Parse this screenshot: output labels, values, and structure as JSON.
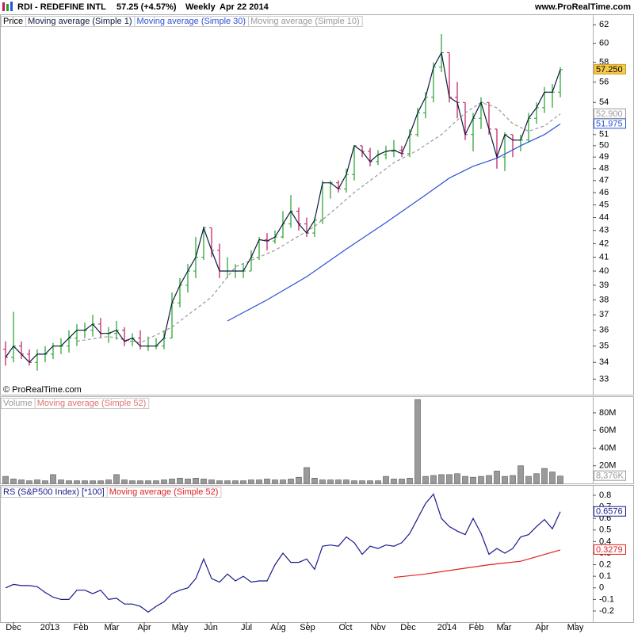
{
  "header": {
    "symbol": "RDI - REDEFINE INTL",
    "quote": "57.25 (+4.57%)",
    "period": "Weekly",
    "date": "Apr 22 2014",
    "site": "www.ProRealTime.com"
  },
  "chart_data": [
    {
      "type": "ohlc",
      "legend_label": "Price",
      "close_name": "Moving average (Simple 1)",
      "close_color": "#0b1a3e",
      "up_color": "#22a02a",
      "down_color": "#c2185b",
      "log_scale": true,
      "annotation": "© ProRealTime.com",
      "last_label": "57.250",
      "xlim": [
        -0.7,
        74.1
      ],
      "ylim": [
        32.1,
        63.0
      ],
      "yticks": [
        33,
        34,
        35,
        36,
        37,
        38,
        39,
        40,
        41,
        42,
        43,
        44,
        45,
        46,
        47,
        48,
        49,
        50,
        51,
        52,
        54,
        56,
        58,
        60,
        62
      ],
      "x": [
        0,
        1,
        2,
        3,
        4,
        5,
        6,
        7,
        8,
        9,
        10,
        11,
        12,
        13,
        14,
        15,
        16,
        17,
        18,
        19,
        20,
        21,
        22,
        23,
        24,
        25,
        26,
        27,
        28,
        29,
        30,
        31,
        32,
        33,
        34,
        35,
        36,
        37,
        38,
        39,
        40,
        41,
        42,
        43,
        44,
        45,
        46,
        47,
        48,
        49,
        50,
        51,
        52,
        53,
        54,
        55,
        56,
        57,
        58,
        59,
        60,
        61,
        62,
        63,
        64,
        65,
        66,
        67,
        68,
        69,
        70
      ],
      "open": [
        34.8,
        34.3,
        35.0,
        34.5,
        34.0,
        34.5,
        34.5,
        35.0,
        35.0,
        35.5,
        36.0,
        36.0,
        36.4,
        35.8,
        35.8,
        36.0,
        35.3,
        35.5,
        35.0,
        35.0,
        35.0,
        35.5,
        37.8,
        39.0,
        40.0,
        41.0,
        43.2,
        41.5,
        40.0,
        40.0,
        40.0,
        40.0,
        41.0,
        42.3,
        42.2,
        42.5,
        43.5,
        44.5,
        43.5,
        42.8,
        43.8,
        46.8,
        46.8,
        46.3,
        47.5,
        50.0,
        49.5,
        48.6,
        49.2,
        49.5,
        49.6,
        49.3,
        51.0,
        53.0,
        54.5,
        57.5,
        59.0,
        54.5,
        54.0,
        51.0,
        52.5,
        54.0,
        51.5,
        49.0,
        51.0,
        50.5,
        50.5,
        52.5,
        53.5,
        55.0,
        55.0
      ],
      "high": [
        35.3,
        37.2,
        35.3,
        34.8,
        34.8,
        35.0,
        35.2,
        35.5,
        36.0,
        36.4,
        36.5,
        37.0,
        36.8,
        36.2,
        36.6,
        36.2,
        35.8,
        36.0,
        35.6,
        35.5,
        36.0,
        38.5,
        39.5,
        40.5,
        42.5,
        43.3,
        43.2,
        42.0,
        41.0,
        40.5,
        40.5,
        41.5,
        42.5,
        42.8,
        43.0,
        44.5,
        45.8,
        44.8,
        44.0,
        44.0,
        47.0,
        47.0,
        47.0,
        48.0,
        50.0,
        50.0,
        49.8,
        49.6,
        50.0,
        50.5,
        50.0,
        51.5,
        53.5,
        55.0,
        58.0,
        61.0,
        59.0,
        56.0,
        54.0,
        53.0,
        54.5,
        54.0,
        51.5,
        51.2,
        51.0,
        51.0,
        53.0,
        54.0,
        55.5,
        55.8,
        57.5
      ],
      "low": [
        33.8,
        34.0,
        34.2,
        33.8,
        33.5,
        34.0,
        34.2,
        34.5,
        34.6,
        35.0,
        35.5,
        35.6,
        35.5,
        35.2,
        35.4,
        35.0,
        35.0,
        34.8,
        34.7,
        34.8,
        34.8,
        35.5,
        37.5,
        38.5,
        39.5,
        40.8,
        41.0,
        39.5,
        39.5,
        39.5,
        39.5,
        40.0,
        40.8,
        41.5,
        42.0,
        42.4,
        43.2,
        43.0,
        42.5,
        42.5,
        43.5,
        45.5,
        46.0,
        46.0,
        47.0,
        49.0,
        48.2,
        48.3,
        48.8,
        49.0,
        49.0,
        49.0,
        50.8,
        52.5,
        54.0,
        57.0,
        54.0,
        52.5,
        50.5,
        49.5,
        51.5,
        51.0,
        48.0,
        47.8,
        49.0,
        49.5,
        50.3,
        52.0,
        53.0,
        53.5,
        54.5
      ],
      "close": [
        34.3,
        35.0,
        34.5,
        34.0,
        34.5,
        34.5,
        35.0,
        35.0,
        35.5,
        36.0,
        36.0,
        36.4,
        35.8,
        35.8,
        36.0,
        35.3,
        35.5,
        35.0,
        35.0,
        35.0,
        35.5,
        37.8,
        39.0,
        40.0,
        41.0,
        43.2,
        41.5,
        40.0,
        40.0,
        40.0,
        40.0,
        41.0,
        42.3,
        42.2,
        42.5,
        43.5,
        44.5,
        43.5,
        42.8,
        43.8,
        46.8,
        46.8,
        46.3,
        47.5,
        50.0,
        49.5,
        48.6,
        49.2,
        49.5,
        49.6,
        49.3,
        51.0,
        53.0,
        54.5,
        57.5,
        59.0,
        54.5,
        54.0,
        51.0,
        52.5,
        54.0,
        51.5,
        49.0,
        51.0,
        50.5,
        50.5,
        52.5,
        53.5,
        55.0,
        55.0,
        57.25
      ],
      "series": [
        {
          "name": "Moving average (Simple 30)",
          "color": "#2a52d8",
          "last_label": "51.975",
          "x": [
            28,
            33,
            38,
            43,
            48,
            53,
            56,
            59,
            62,
            65,
            68,
            70
          ],
          "values": [
            36.6,
            38.0,
            39.6,
            41.6,
            43.6,
            45.8,
            47.2,
            48.2,
            48.9,
            50.0,
            51.0,
            51.975
          ]
        },
        {
          "name": "Moving average (Simple 10)",
          "color": "#9a9a9a",
          "dashed": true,
          "last_label": "52.900",
          "x": [
            9,
            13,
            17,
            21,
            26,
            29,
            34,
            39,
            44,
            49,
            52,
            55,
            58,
            60,
            62,
            64,
            66,
            68,
            70
          ],
          "values": [
            35.3,
            35.6,
            35.2,
            36.2,
            38.2,
            40.3,
            41.5,
            43.3,
            46.0,
            48.5,
            49.6,
            51.0,
            53.0,
            54.0,
            53.5,
            52.0,
            51.3,
            51.8,
            52.9
          ]
        }
      ]
    },
    {
      "type": "volume_bar",
      "legend_label": "Volume",
      "ma_name": "Moving average (Simple 52)",
      "ma_color": "#e07070",
      "color": "#9a9a9a",
      "last_label": "8,376K",
      "xlim": [
        -0.7,
        74.1
      ],
      "ylim": [
        0,
        97000000
      ],
      "yticks": [
        {
          "value": 20000000,
          "label": "20M"
        },
        {
          "value": 40000000,
          "label": "40M"
        },
        {
          "value": 60000000,
          "label": "60M"
        },
        {
          "value": 80000000,
          "label": "80M"
        }
      ],
      "values": [
        8000000,
        5000000,
        4000000,
        3000000,
        4000000,
        3000000,
        10000000,
        4000000,
        3000000,
        3000000,
        3000000,
        3000000,
        3000000,
        4000000,
        10000000,
        4000000,
        3000000,
        3000000,
        3000000,
        3000000,
        4000000,
        5000000,
        6000000,
        5000000,
        6000000,
        5000000,
        4000000,
        3000000,
        3000000,
        3000000,
        3000000,
        4000000,
        4000000,
        5000000,
        4000000,
        4000000,
        5000000,
        7000000,
        18000000,
        6000000,
        4000000,
        4000000,
        4000000,
        4000000,
        3000000,
        3000000,
        3000000,
        3000000,
        8000000,
        5000000,
        5000000,
        6000000,
        95000000,
        8000000,
        9000000,
        10000000,
        10000000,
        11000000,
        8000000,
        7000000,
        8000000,
        9000000,
        14000000,
        8000000,
        9000000,
        20000000,
        8000000,
        11000000,
        17000000,
        13000000,
        8376000
      ]
    },
    {
      "type": "line",
      "xlim": [
        -0.7,
        74.1
      ],
      "ylim": [
        -0.296,
        0.875
      ],
      "yticks": [
        -0.2,
        -0.1,
        0,
        0.1,
        0.2,
        0.3,
        0.4,
        0.5,
        0.6,
        0.7,
        0.8
      ],
      "xticks": [
        {
          "value": 1,
          "label": "Dec"
        },
        {
          "value": 5.6,
          "label": "2013"
        },
        {
          "value": 9.5,
          "label": "Feb"
        },
        {
          "value": 13.4,
          "label": "Mar"
        },
        {
          "value": 17.5,
          "label": "Apr"
        },
        {
          "value": 22,
          "label": "May"
        },
        {
          "value": 25.9,
          "label": "Jun"
        },
        {
          "value": 30.4,
          "label": "Jul"
        },
        {
          "value": 34.4,
          "label": "Aug"
        },
        {
          "value": 38.1,
          "label": "Sep"
        },
        {
          "value": 42.9,
          "label": "Oct"
        },
        {
          "value": 47,
          "label": "Nov"
        },
        {
          "value": 50.8,
          "label": "Dec"
        },
        {
          "value": 55.7,
          "label": "2014"
        },
        {
          "value": 59.4,
          "label": "Feb"
        },
        {
          "value": 62.9,
          "label": "Mar"
        },
        {
          "value": 67.7,
          "label": "Apr"
        },
        {
          "value": 71.9,
          "label": "May"
        }
      ],
      "series": [
        {
          "name": "RS (S&P500 Index) [*100]",
          "color": "#1a1a8c",
          "last_label": "0.6576",
          "values": [
            0.0,
            0.03,
            0.02,
            0.02,
            0.01,
            -0.04,
            -0.08,
            -0.1,
            -0.1,
            -0.02,
            -0.02,
            -0.05,
            -0.02,
            -0.1,
            -0.09,
            -0.14,
            -0.14,
            -0.16,
            -0.21,
            -0.16,
            -0.12,
            -0.05,
            -0.02,
            0.0,
            0.08,
            0.25,
            0.08,
            0.05,
            0.12,
            0.06,
            0.1,
            0.05,
            0.06,
            0.06,
            0.2,
            0.3,
            0.22,
            0.22,
            0.25,
            0.16,
            0.36,
            0.37,
            0.36,
            0.44,
            0.39,
            0.29,
            0.36,
            0.34,
            0.37,
            0.36,
            0.39,
            0.47,
            0.6,
            0.73,
            0.81,
            0.6,
            0.53,
            0.49,
            0.46,
            0.6,
            0.47,
            0.29,
            0.34,
            0.3,
            0.34,
            0.44,
            0.46,
            0.53,
            0.59,
            0.51,
            0.6576
          ]
        },
        {
          "name": "Moving average (Simple 52)",
          "color": "#e02020",
          "last_label": "0.3279",
          "x": [
            49,
            53,
            57,
            61,
            65,
            70
          ],
          "values": [
            0.09,
            0.12,
            0.16,
            0.2,
            0.23,
            0.3279
          ]
        }
      ]
    }
  ]
}
